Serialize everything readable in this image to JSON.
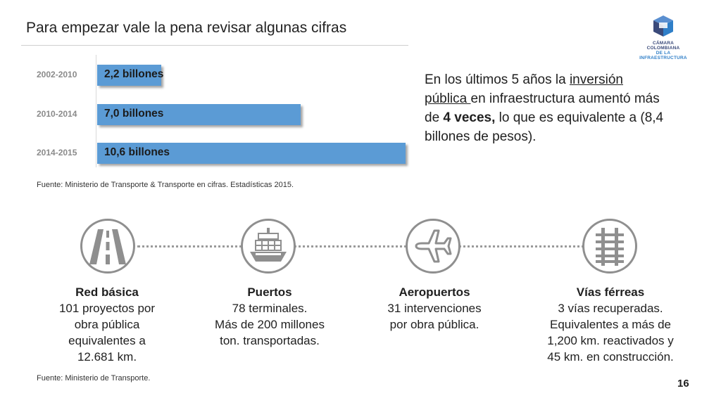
{
  "slide": {
    "title": "Para empezar vale la pena revisar algunas cifras",
    "page_number": "16"
  },
  "logo": {
    "line1": "CÁMARA COLOMBIANA",
    "line2": "DE LA INFRAESTRUCTURA"
  },
  "chart_data": {
    "type": "bar",
    "orientation": "horizontal",
    "categories": [
      "2002-2010",
      "2010-2014",
      "2014-2015"
    ],
    "values": [
      2.2,
      7.0,
      10.6
    ],
    "data_labels": [
      "2,2 billones",
      "7,0 billones",
      "10,6 billones"
    ],
    "bar_color": "#5b9bd5"
  },
  "side_text": {
    "part1": "En los últimos 5 años la ",
    "underlined": "inversión pública ",
    "part2": "en infraestructura aumentó más de ",
    "bold": "4 veces,",
    "part3": " lo que es equivalente a (8,4 billones de pesos)."
  },
  "source1": "Fuente: Ministerio de Transporte & Transporte en cifras. Estadísticas 2015.",
  "items": [
    {
      "icon": "road-icon",
      "title": "Red básica",
      "lines": [
        "101 proyectos por",
        "obra pública",
        "equivalentes a",
        "12.681 km."
      ]
    },
    {
      "icon": "ship-icon",
      "title": "Puertos",
      "lines": [
        "78 terminales.",
        "Más de 200 millones",
        "ton. transportadas."
      ]
    },
    {
      "icon": "airplane-icon",
      "title": "Aeropuertos",
      "lines": [
        "31 intervenciones",
        "por obra pública."
      ]
    },
    {
      "icon": "railway-icon",
      "title": "Vías férreas",
      "lines": [
        "3 vías recuperadas.",
        "Equivalentes a más de",
        "1,200 km. reactivados y",
        "45 km. en construcción."
      ]
    }
  ],
  "source2": "Fuente: Ministerio de Transporte."
}
